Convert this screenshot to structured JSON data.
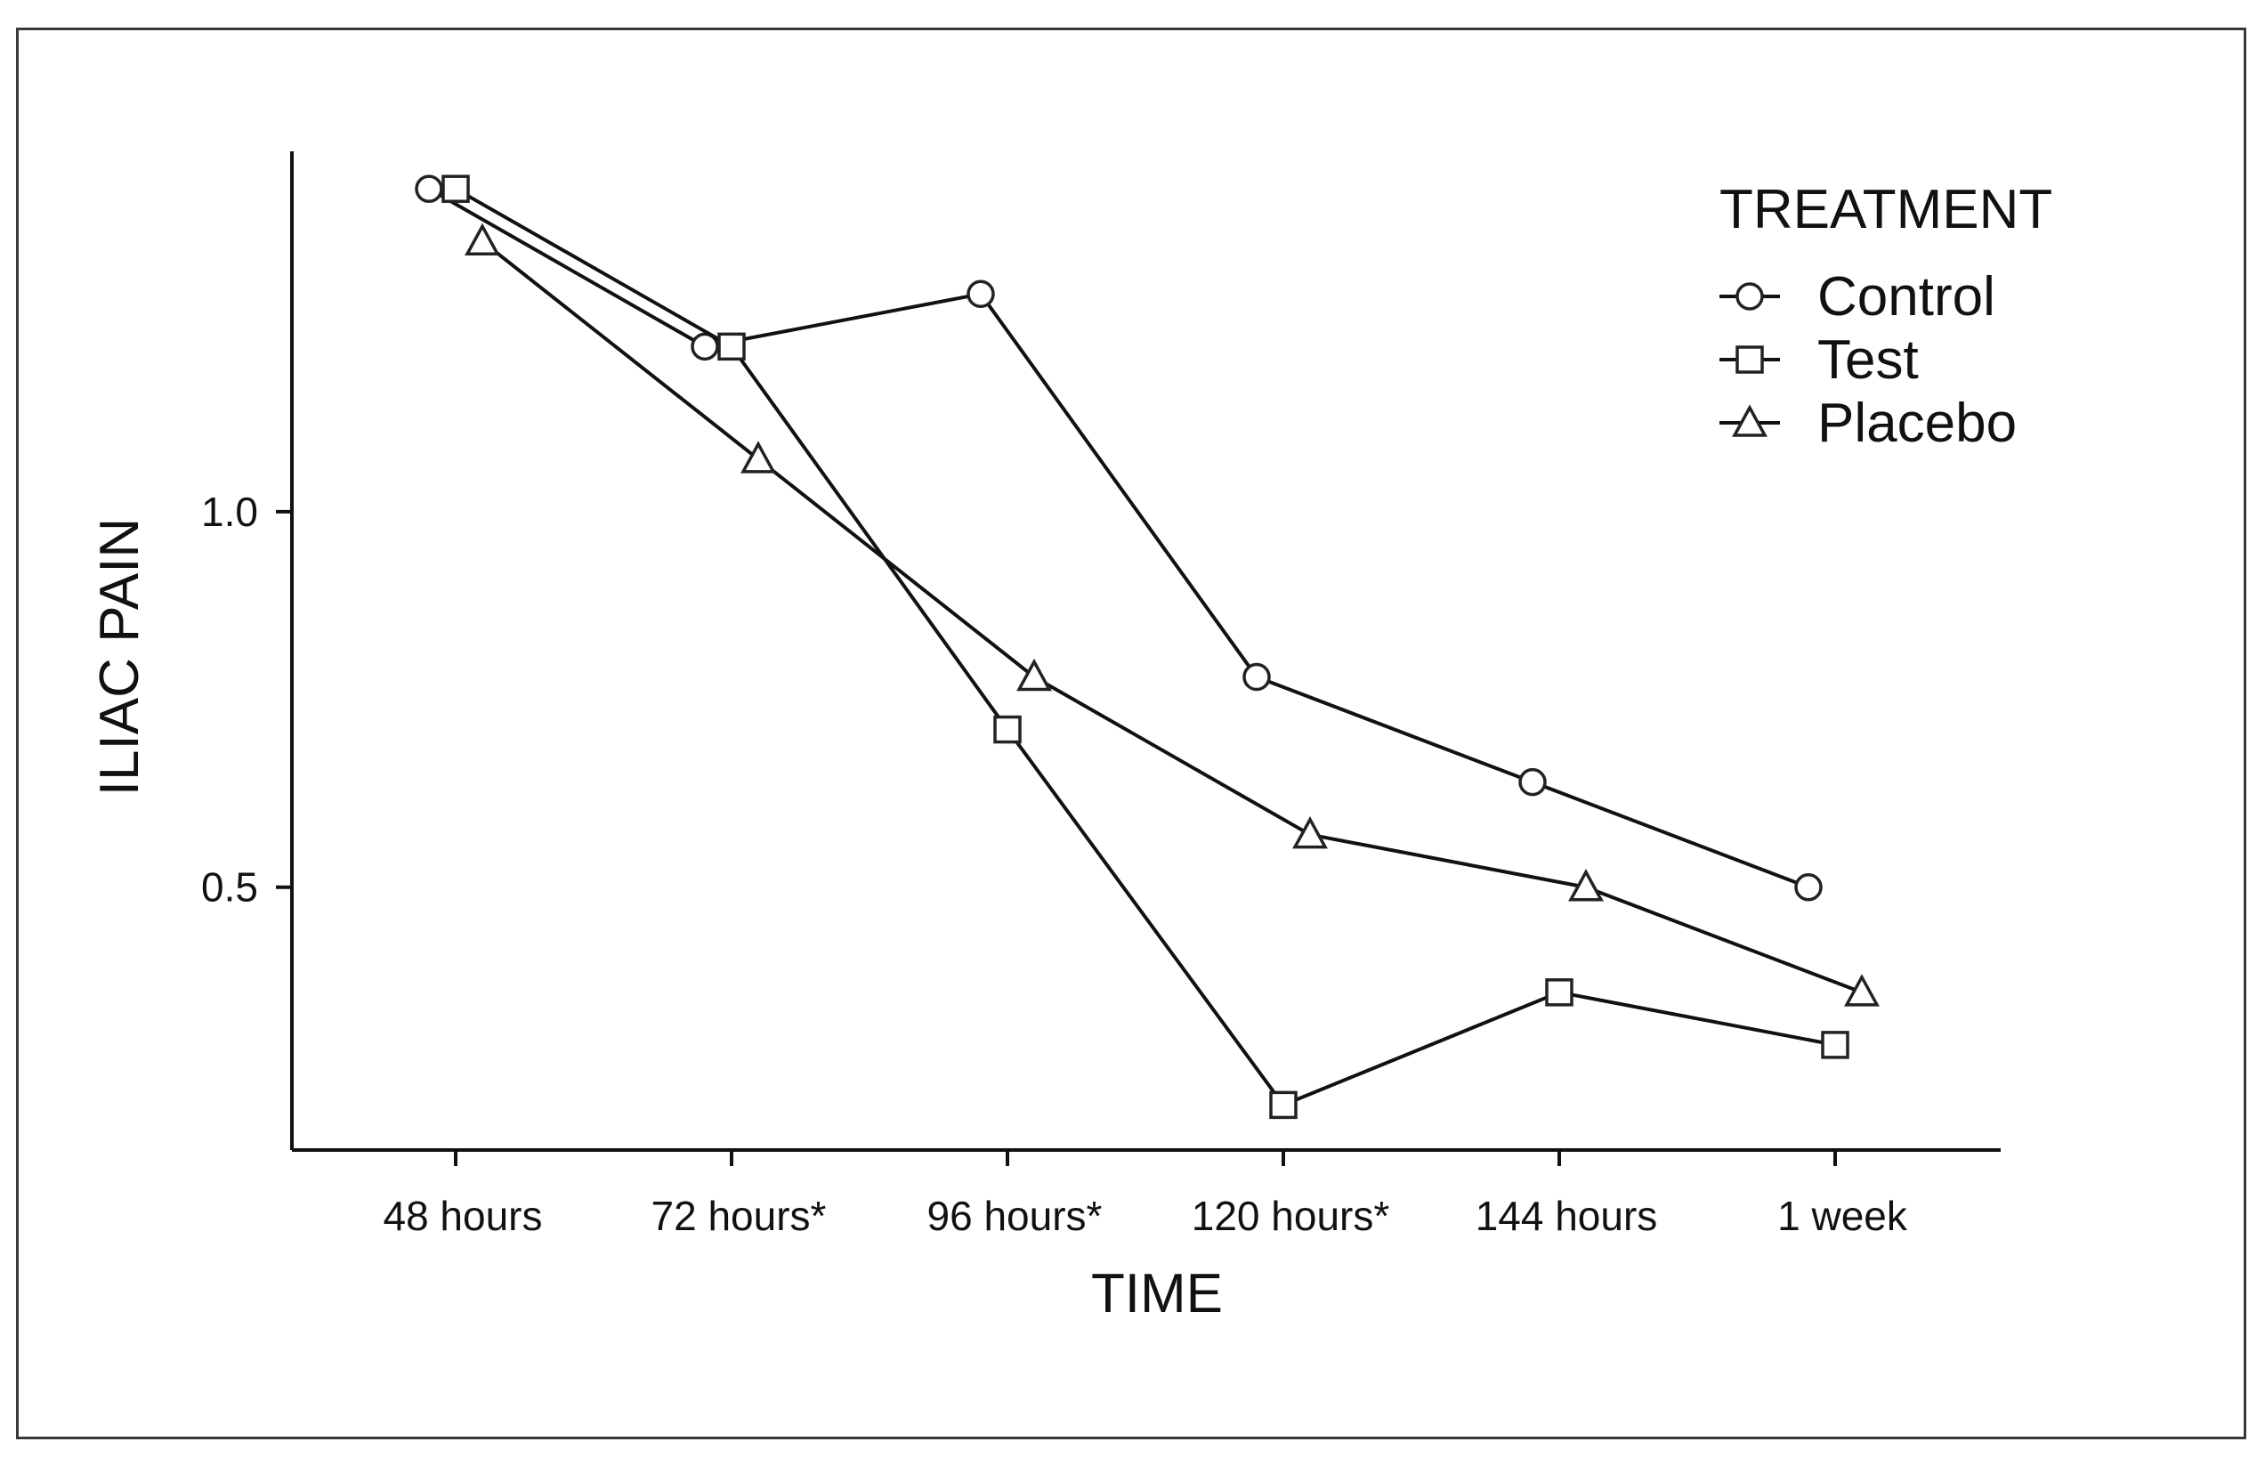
{
  "chart_data": {
    "type": "line",
    "categories": [
      "48 hours",
      "72 hours*",
      "96 hours*",
      "120 hours*",
      "144 hours",
      "1 week"
    ],
    "xlabel": "TIME",
    "ylabel": "ILIAC PAIN",
    "ylim": [
      0.15,
      1.48
    ],
    "yticks": [
      0.5,
      1.0
    ],
    "ytick_labels": [
      "0.5",
      "1.0"
    ],
    "grid": false,
    "legend": {
      "title": "TREATMENT",
      "placement": "top-right"
    },
    "series": [
      {
        "name": "Control",
        "marker": "circle",
        "values": [
          1.43,
          1.22,
          1.29,
          0.78,
          0.64,
          0.5
        ]
      },
      {
        "name": "Test",
        "marker": "square",
        "values": [
          1.43,
          1.22,
          0.71,
          0.21,
          0.36,
          0.29
        ]
      },
      {
        "name": "Placebo",
        "marker": "triangle",
        "values": [
          1.36,
          1.07,
          0.78,
          0.57,
          0.5,
          0.36
        ]
      }
    ]
  }
}
